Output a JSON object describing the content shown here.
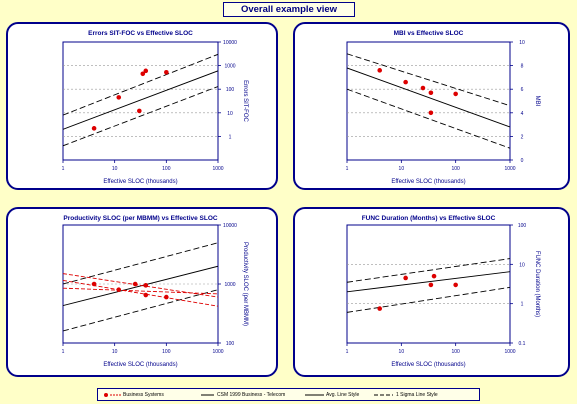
{
  "page": {
    "title": "Overall example view"
  },
  "legend": {
    "items": [
      {
        "label": "Business Systems",
        "marker": "dot-dashed",
        "color": "#cc0000"
      },
      {
        "label": "CSM 1999 Business - Telecom",
        "marker": "line",
        "color": "#000000"
      },
      {
        "label": "Avg. Line Style",
        "marker": "solid",
        "color": "#000000"
      },
      {
        "label": "1 Sigma Line Style",
        "marker": "dashed",
        "color": "#000000"
      }
    ]
  },
  "chart_data": [
    {
      "type": "scatter",
      "title": "Errors SIT-FOC vs Effective SLOC",
      "xlabel": "Effective SLOC (thousands)",
      "ylabel": "Errors SIT-FOC",
      "xscale": "log",
      "yscale": "log",
      "xlim": [
        1,
        1000
      ],
      "ylim": [
        0.1,
        10000
      ],
      "xticks": [
        "1",
        "10",
        "100",
        "1000"
      ],
      "yticks": [
        "10000",
        "1000",
        "100",
        "10",
        "1"
      ],
      "grid": "horizontal-dotted",
      "points": {
        "x": [
          4,
          12,
          30,
          35,
          40,
          100
        ],
        "y": [
          2.2,
          45,
          12,
          450,
          600,
          520
        ]
      },
      "avg_line": {
        "x": [
          1,
          1000
        ],
        "y": [
          2,
          600
        ]
      },
      "sigma_lines": [
        {
          "x": [
            1,
            1000
          ],
          "y": [
            8,
            3000
          ]
        },
        {
          "x": [
            1,
            1000
          ],
          "y": [
            0.4,
            130
          ]
        }
      ],
      "colors": {
        "points": "#dd0000",
        "lines": "#000000"
      }
    },
    {
      "type": "scatter",
      "title": "MBI vs Effective SLOC",
      "xlabel": "Effective SLOC (thousands)",
      "ylabel": "MBI",
      "xscale": "log",
      "yscale": "linear",
      "xlim": [
        1,
        1000
      ],
      "ylim": [
        0,
        10
      ],
      "xticks": [
        "1",
        "10",
        "100",
        "1000"
      ],
      "yticks": [
        "10",
        "8",
        "6",
        "4",
        "2",
        "0"
      ],
      "grid": "horizontal-dotted",
      "points": {
        "x": [
          4,
          12,
          25,
          35,
          35,
          100
        ],
        "y": [
          7.6,
          6.6,
          6.1,
          5.7,
          4.0,
          5.6
        ]
      },
      "avg_line": {
        "x": [
          1,
          1000
        ],
        "y": [
          7.8,
          2.8
        ]
      },
      "sigma_lines": [
        {
          "x": [
            1,
            1000
          ],
          "y": [
            9.0,
            4.6
          ]
        },
        {
          "x": [
            1,
            1000
          ],
          "y": [
            6.0,
            1.0
          ]
        }
      ],
      "colors": {
        "points": "#dd0000",
        "lines": "#000000"
      }
    },
    {
      "type": "scatter",
      "title": "Productivity SLOC (per MBMM) vs Effective SLOC",
      "xlabel": "Effective SLOC (thousands)",
      "ylabel": "Productivity SLOC (per MBMM)",
      "xscale": "log",
      "yscale": "log",
      "xlim": [
        1,
        1000
      ],
      "ylim": [
        100,
        10000
      ],
      "xticks": [
        "1",
        "10",
        "100",
        "1000"
      ],
      "yticks": [
        "10000",
        "1000",
        "100"
      ],
      "grid": "horizontal-dotted",
      "points": {
        "x": [
          4,
          12,
          25,
          40,
          40,
          100
        ],
        "y": [
          1000,
          800,
          1000,
          950,
          650,
          600
        ]
      },
      "avg_line": {
        "x": [
          1,
          1000
        ],
        "y": [
          430,
          2000
        ]
      },
      "sigma_lines": [
        {
          "x": [
            1,
            1000
          ],
          "y": [
            1000,
            5000
          ]
        },
        {
          "x": [
            1,
            1000
          ],
          "y": [
            160,
            800
          ]
        }
      ],
      "red_lines": [
        {
          "x": [
            1,
            1000
          ],
          "y": [
            1500,
            600
          ]
        },
        {
          "x": [
            1,
            1000
          ],
          "y": [
            1150,
            420
          ]
        },
        {
          "x": [
            1,
            1000
          ],
          "y": [
            850,
            680
          ]
        }
      ],
      "colors": {
        "points": "#dd0000",
        "lines": "#000000",
        "red_lines": "#dd0000"
      }
    },
    {
      "type": "scatter",
      "title": "FUNC Duration (Months) vs Effective SLOC",
      "xlabel": "Effective SLOC (thousands)",
      "ylabel": "FUNC Duration (Months)",
      "xscale": "log",
      "yscale": "log",
      "xlim": [
        1,
        1000
      ],
      "ylim": [
        0.1,
        100
      ],
      "xticks": [
        "1",
        "10",
        "100",
        "1000"
      ],
      "yticks": [
        "100",
        "10",
        "1",
        "0.1"
      ],
      "grid": "horizontal-dotted",
      "points": {
        "x": [
          4,
          12,
          35,
          40,
          100
        ],
        "y": [
          0.75,
          4.5,
          3.0,
          5.0,
          3.0
        ]
      },
      "avg_line": {
        "x": [
          1,
          1000
        ],
        "y": [
          2.0,
          6.5
        ]
      },
      "sigma_lines": [
        {
          "x": [
            1,
            1000
          ],
          "y": [
            3.5,
            14
          ]
        },
        {
          "x": [
            1,
            1000
          ],
          "y": [
            0.6,
            2.6
          ]
        }
      ],
      "colors": {
        "points": "#dd0000",
        "lines": "#000000"
      }
    }
  ]
}
